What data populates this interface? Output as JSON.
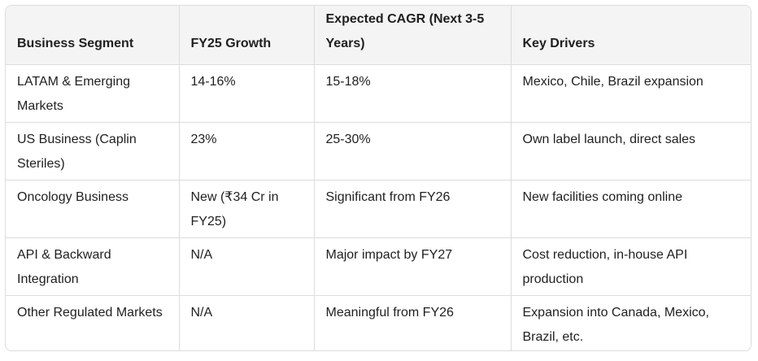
{
  "table": {
    "headers": [
      "Business Segment",
      "FY25 Growth",
      "Expected CAGR (Next 3-5 Years)",
      "Key Drivers"
    ],
    "rows": [
      [
        "LATAM & Emerging Markets",
        "14-16%",
        "15-18%",
        "Mexico, Chile, Brazil expansion"
      ],
      [
        "US Business (Caplin Steriles)",
        "23%",
        "25-30%",
        "Own label launch, direct sales"
      ],
      [
        "Oncology Business",
        "New (₹34 Cr in FY25)",
        "Significant from FY26",
        "New facilities coming online"
      ],
      [
        "API & Backward Integration",
        "N/A",
        "Major impact by FY27",
        "Cost reduction, in-house API production"
      ],
      [
        "Other Regulated Markets",
        "N/A",
        "Meaningful from FY26",
        "Expansion into Canada, Mexico, Brazil, etc."
      ]
    ]
  }
}
